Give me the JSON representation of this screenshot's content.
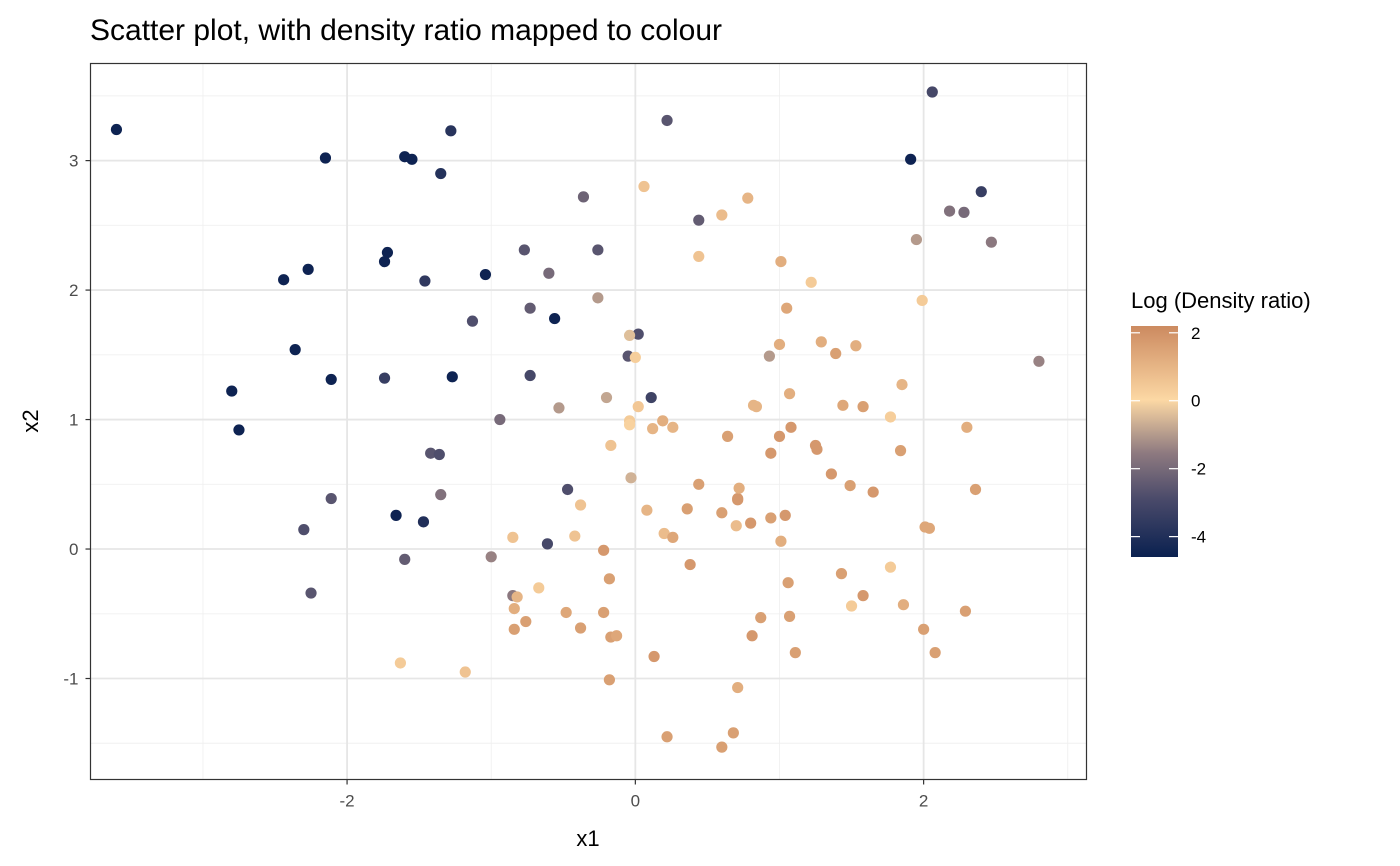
{
  "chart_data": {
    "type": "scatter",
    "title": "Scatter plot, with density ratio mapped to colour",
    "xlabel": "x1",
    "ylabel": "x2",
    "xlim": [
      -3.78,
      3.13
    ],
    "ylim": [
      -1.78,
      3.75
    ],
    "xticks": [
      -2,
      0,
      2
    ],
    "yticks": [
      -1,
      0,
      1,
      2,
      3
    ],
    "grid": true,
    "legend": {
      "title": "Log (Density ratio)",
      "position": "right",
      "ticks": [
        2,
        0,
        -2,
        -4
      ],
      "range": [
        -4.6,
        2.2
      ],
      "colors": {
        "low": "#0a2150",
        "mid_low": "#4a4a6a",
        "mid": "#8e7a80",
        "mid_high": "#fcd8a4",
        "high": "#cc8a60"
      }
    },
    "points": [
      {
        "x": -3.6,
        "y": 3.24,
        "c": -4.5
      },
      {
        "x": -2.15,
        "y": 3.02,
        "c": -4.5
      },
      {
        "x": -1.6,
        "y": 3.03,
        "c": -4.5
      },
      {
        "x": -1.55,
        "y": 3.01,
        "c": -4.5
      },
      {
        "x": -1.28,
        "y": 3.23,
        "c": -3.8
      },
      {
        "x": -1.35,
        "y": 2.9,
        "c": -3.9
      },
      {
        "x": -1.72,
        "y": 2.29,
        "c": -4.5
      },
      {
        "x": -1.74,
        "y": 2.22,
        "c": -4.5
      },
      {
        "x": -2.27,
        "y": 2.16,
        "c": -4.5
      },
      {
        "x": -2.44,
        "y": 2.08,
        "c": -4.5
      },
      {
        "x": -1.46,
        "y": 2.07,
        "c": -3.6
      },
      {
        "x": -1.04,
        "y": 2.12,
        "c": -4.5
      },
      {
        "x": -0.56,
        "y": 1.78,
        "c": -4.5
      },
      {
        "x": -2.36,
        "y": 1.54,
        "c": -4.5
      },
      {
        "x": -2.11,
        "y": 1.31,
        "c": -4.5
      },
      {
        "x": -1.74,
        "y": 1.32,
        "c": -3.4
      },
      {
        "x": -1.27,
        "y": 1.33,
        "c": -4.5
      },
      {
        "x": -2.8,
        "y": 1.22,
        "c": -4.5
      },
      {
        "x": -2.75,
        "y": 0.92,
        "c": -4.5
      },
      {
        "x": -1.13,
        "y": 1.76,
        "c": -2.8
      },
      {
        "x": -0.77,
        "y": 2.31,
        "c": -2.6
      },
      {
        "x": -0.73,
        "y": 1.86,
        "c": -2.4
      },
      {
        "x": -0.73,
        "y": 1.34,
        "c": -3.0
      },
      {
        "x": -0.6,
        "y": 2.13,
        "c": -2.0
      },
      {
        "x": -0.36,
        "y": 2.72,
        "c": -2.2
      },
      {
        "x": -0.26,
        "y": 2.31,
        "c": -2.6
      },
      {
        "x": -0.26,
        "y": 1.94,
        "c": -1.0
      },
      {
        "x": -0.05,
        "y": 1.49,
        "c": -2.6
      },
      {
        "x": 0.02,
        "y": 1.66,
        "c": -2.8
      },
      {
        "x": 0.11,
        "y": 1.17,
        "c": -3.2
      },
      {
        "x": 0.22,
        "y": 3.31,
        "c": -2.6
      },
      {
        "x": 0.44,
        "y": 2.54,
        "c": -2.4
      },
      {
        "x": 2.06,
        "y": 3.53,
        "c": -3.0
      },
      {
        "x": 1.91,
        "y": 3.01,
        "c": -4.5
      },
      {
        "x": 2.4,
        "y": 2.76,
        "c": -3.4
      },
      {
        "x": 2.18,
        "y": 2.61,
        "c": -1.8
      },
      {
        "x": 2.28,
        "y": 2.6,
        "c": -2.0
      },
      {
        "x": 2.47,
        "y": 2.37,
        "c": -1.6
      },
      {
        "x": 1.95,
        "y": 2.39,
        "c": -1.0
      },
      {
        "x": 2.8,
        "y": 1.45,
        "c": -1.4
      },
      {
        "x": -0.94,
        "y": 1.0,
        "c": -2.0
      },
      {
        "x": -1.42,
        "y": 0.74,
        "c": -2.6
      },
      {
        "x": -1.36,
        "y": 0.73,
        "c": -2.8
      },
      {
        "x": -1.35,
        "y": 0.42,
        "c": -1.8
      },
      {
        "x": -2.11,
        "y": 0.39,
        "c": -2.6
      },
      {
        "x": -2.3,
        "y": 0.15,
        "c": -2.8
      },
      {
        "x": -1.66,
        "y": 0.26,
        "c": -4.5
      },
      {
        "x": -1.47,
        "y": 0.21,
        "c": -4.0
      },
      {
        "x": -1.6,
        "y": -0.08,
        "c": -2.4
      },
      {
        "x": -2.25,
        "y": -0.34,
        "c": -2.6
      },
      {
        "x": -0.47,
        "y": 0.46,
        "c": -2.8
      },
      {
        "x": -0.61,
        "y": 0.04,
        "c": -3.0
      },
      {
        "x": -1.0,
        "y": -0.06,
        "c": -1.4
      },
      {
        "x": -0.53,
        "y": 1.09,
        "c": -1.0
      },
      {
        "x": -0.85,
        "y": -0.36,
        "c": -1.6
      },
      {
        "x": 0.06,
        "y": 2.8,
        "c": 0.6
      },
      {
        "x": 0.6,
        "y": 2.58,
        "c": 0.8
      },
      {
        "x": 0.78,
        "y": 2.71,
        "c": 1.0
      },
      {
        "x": 0.44,
        "y": 2.26,
        "c": 0.6
      },
      {
        "x": 1.01,
        "y": 2.22,
        "c": 1.2
      },
      {
        "x": 1.22,
        "y": 2.06,
        "c": 0.4
      },
      {
        "x": 1.99,
        "y": 1.92,
        "c": 0.4
      },
      {
        "x": 1.05,
        "y": 1.86,
        "c": 1.4
      },
      {
        "x": -0.04,
        "y": 1.65,
        "c": -0.4
      },
      {
        "x": 0.0,
        "y": 1.48,
        "c": 0.3
      },
      {
        "x": 0.93,
        "y": 1.49,
        "c": -1.0
      },
      {
        "x": 1.0,
        "y": 1.58,
        "c": 1.2
      },
      {
        "x": 1.29,
        "y": 1.6,
        "c": 1.2
      },
      {
        "x": 1.39,
        "y": 1.51,
        "c": 1.6
      },
      {
        "x": 1.53,
        "y": 1.57,
        "c": 1.2
      },
      {
        "x": 1.85,
        "y": 1.27,
        "c": 1.0
      },
      {
        "x": 1.77,
        "y": 1.02,
        "c": 0.3
      },
      {
        "x": -0.2,
        "y": 1.17,
        "c": -0.8
      },
      {
        "x": 0.02,
        "y": 1.1,
        "c": 0.5
      },
      {
        "x": -0.04,
        "y": 0.99,
        "c": 0.4
      },
      {
        "x": -0.04,
        "y": 0.96,
        "c": 0.2
      },
      {
        "x": 0.12,
        "y": 0.93,
        "c": 1.0
      },
      {
        "x": 0.19,
        "y": 0.99,
        "c": 1.2
      },
      {
        "x": 0.26,
        "y": 0.94,
        "c": 1.0
      },
      {
        "x": 0.82,
        "y": 1.11,
        "c": 1.0
      },
      {
        "x": 0.84,
        "y": 1.1,
        "c": 1.0
      },
      {
        "x": 1.07,
        "y": 1.2,
        "c": 1.2
      },
      {
        "x": 1.44,
        "y": 1.11,
        "c": 1.4
      },
      {
        "x": 1.58,
        "y": 1.1,
        "c": 1.6
      },
      {
        "x": 0.64,
        "y": 0.87,
        "c": 1.6
      },
      {
        "x": 1.0,
        "y": 0.87,
        "c": 1.8
      },
      {
        "x": 1.08,
        "y": 0.94,
        "c": 1.8
      },
      {
        "x": 0.94,
        "y": 0.74,
        "c": 1.8
      },
      {
        "x": 1.25,
        "y": 0.8,
        "c": 1.8
      },
      {
        "x": 1.26,
        "y": 0.77,
        "c": 1.8
      },
      {
        "x": 1.84,
        "y": 0.76,
        "c": 1.6
      },
      {
        "x": 2.3,
        "y": 0.94,
        "c": 1.2
      },
      {
        "x": -0.17,
        "y": 0.8,
        "c": 0.6
      },
      {
        "x": -0.03,
        "y": 0.55,
        "c": -0.6
      },
      {
        "x": -0.38,
        "y": 0.34,
        "c": 0.6
      },
      {
        "x": -0.42,
        "y": 0.1,
        "c": 0.6
      },
      {
        "x": -0.85,
        "y": 0.09,
        "c": 0.6
      },
      {
        "x": 0.08,
        "y": 0.3,
        "c": 1.0
      },
      {
        "x": 0.2,
        "y": 0.12,
        "c": 0.8
      },
      {
        "x": 0.26,
        "y": 0.09,
        "c": 1.4
      },
      {
        "x": 0.36,
        "y": 0.31,
        "c": 1.6
      },
      {
        "x": 0.44,
        "y": 0.5,
        "c": 1.6
      },
      {
        "x": 0.6,
        "y": 0.28,
        "c": 1.6
      },
      {
        "x": 0.71,
        "y": 0.39,
        "c": 1.8
      },
      {
        "x": 0.71,
        "y": 0.38,
        "c": 1.8
      },
      {
        "x": 0.72,
        "y": 0.47,
        "c": 1.2
      },
      {
        "x": 0.7,
        "y": 0.18,
        "c": 0.8
      },
      {
        "x": 0.8,
        "y": 0.2,
        "c": 1.8
      },
      {
        "x": 0.94,
        "y": 0.24,
        "c": 1.6
      },
      {
        "x": 1.04,
        "y": 0.26,
        "c": 1.8
      },
      {
        "x": 1.01,
        "y": 0.06,
        "c": 1.2
      },
      {
        "x": 1.36,
        "y": 0.58,
        "c": 1.8
      },
      {
        "x": 1.49,
        "y": 0.49,
        "c": 1.6
      },
      {
        "x": 1.65,
        "y": 0.44,
        "c": 1.8
      },
      {
        "x": 2.36,
        "y": 0.46,
        "c": 1.6
      },
      {
        "x": 2.01,
        "y": 0.17,
        "c": 1.4
      },
      {
        "x": 2.04,
        "y": 0.16,
        "c": 1.4
      },
      {
        "x": -0.22,
        "y": -0.01,
        "c": 1.8
      },
      {
        "x": -0.18,
        "y": -0.23,
        "c": 1.6
      },
      {
        "x": -0.67,
        "y": -0.3,
        "c": 0.4
      },
      {
        "x": -0.82,
        "y": -0.37,
        "c": 1.0
      },
      {
        "x": -0.84,
        "y": -0.46,
        "c": 1.2
      },
      {
        "x": -0.76,
        "y": -0.56,
        "c": 1.6
      },
      {
        "x": -0.84,
        "y": -0.62,
        "c": 1.6
      },
      {
        "x": -0.48,
        "y": -0.49,
        "c": 1.4
      },
      {
        "x": -0.38,
        "y": -0.61,
        "c": 1.6
      },
      {
        "x": -0.22,
        "y": -0.49,
        "c": 1.6
      },
      {
        "x": -0.17,
        "y": -0.68,
        "c": 1.6
      },
      {
        "x": -0.13,
        "y": -0.67,
        "c": 1.4
      },
      {
        "x": 0.38,
        "y": -0.12,
        "c": 1.8
      },
      {
        "x": 1.06,
        "y": -0.26,
        "c": 1.6
      },
      {
        "x": 1.43,
        "y": -0.19,
        "c": 1.6
      },
      {
        "x": 1.58,
        "y": -0.36,
        "c": 1.8
      },
      {
        "x": 1.77,
        "y": -0.14,
        "c": 0.4
      },
      {
        "x": 1.5,
        "y": -0.44,
        "c": 0.4
      },
      {
        "x": 1.86,
        "y": -0.43,
        "c": 1.2
      },
      {
        "x": 2.29,
        "y": -0.48,
        "c": 1.6
      },
      {
        "x": 0.87,
        "y": -0.53,
        "c": 1.6
      },
      {
        "x": 1.07,
        "y": -0.52,
        "c": 1.6
      },
      {
        "x": 0.81,
        "y": -0.67,
        "c": 1.8
      },
      {
        "x": 1.11,
        "y": -0.8,
        "c": 1.6
      },
      {
        "x": 2.0,
        "y": -0.62,
        "c": 1.6
      },
      {
        "x": 2.08,
        "y": -0.8,
        "c": 1.6
      },
      {
        "x": 0.13,
        "y": -0.83,
        "c": 1.8
      },
      {
        "x": -1.63,
        "y": -0.88,
        "c": 0.4
      },
      {
        "x": -1.18,
        "y": -0.95,
        "c": 0.6
      },
      {
        "x": -0.18,
        "y": -1.01,
        "c": 1.6
      },
      {
        "x": 0.71,
        "y": -1.07,
        "c": 1.2
      },
      {
        "x": 0.22,
        "y": -1.45,
        "c": 1.6
      },
      {
        "x": 0.68,
        "y": -1.42,
        "c": 1.6
      },
      {
        "x": 0.6,
        "y": -1.53,
        "c": 1.6
      }
    ]
  }
}
